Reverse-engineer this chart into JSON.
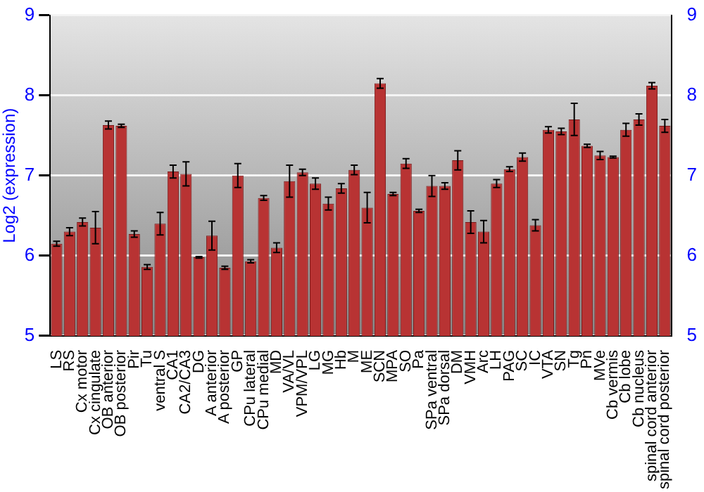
{
  "chart_data": {
    "type": "bar",
    "ylabel": "Log2 (expression)",
    "categories": [
      "LS",
      "RS",
      "Cx motor",
      "Cx cingulate",
      "OB anterior",
      "OB posterior",
      "Pir",
      "Tu",
      "ventral S",
      "CA1",
      "CA2/CA3",
      "DG",
      "A anterior",
      "A posterior",
      "GP",
      "CPu lateral",
      "CPu medial",
      "MD",
      "VA/VL",
      "VPM/VPL",
      "LG",
      "MG",
      "Hb",
      "M",
      "ME",
      "SCN",
      "MPA",
      "SO",
      "Pa",
      "SPa ventral",
      "SPa dorsal",
      "DM",
      "VMH",
      "Arc",
      "LH",
      "PAG",
      "SC",
      "IC",
      "VTA",
      "SN",
      "Tg",
      "Pn",
      "MVe",
      "Cb vermis",
      "Cb lobe",
      "Cb nucleus",
      "spinal cord anterior",
      "spinal cord posterior"
    ],
    "values": [
      6.15,
      6.3,
      6.42,
      6.35,
      7.63,
      7.62,
      6.27,
      5.86,
      6.4,
      7.05,
      7.02,
      5.98,
      6.25,
      5.85,
      7.0,
      5.93,
      6.72,
      6.1,
      6.93,
      7.04,
      6.9,
      6.65,
      6.84,
      7.07,
      6.6,
      8.15,
      6.77,
      7.15,
      6.56,
      6.87,
      6.87,
      7.19,
      6.42,
      6.3,
      6.9,
      7.08,
      7.23,
      6.38,
      7.57,
      7.55,
      7.7,
      7.37,
      7.25,
      7.23,
      7.57,
      7.7,
      8.12,
      7.62
    ],
    "errors": [
      0.03,
      0.05,
      0.05,
      0.2,
      0.05,
      0.02,
      0.04,
      0.03,
      0.14,
      0.08,
      0.15,
      0.01,
      0.18,
      0.02,
      0.15,
      0.02,
      0.03,
      0.06,
      0.2,
      0.04,
      0.07,
      0.08,
      0.06,
      0.06,
      0.19,
      0.06,
      0.02,
      0.06,
      0.02,
      0.13,
      0.04,
      0.12,
      0.14,
      0.14,
      0.05,
      0.03,
      0.05,
      0.07,
      0.04,
      0.04,
      0.2,
      0.02,
      0.05,
      0.01,
      0.08,
      0.07,
      0.04,
      0.08
    ],
    "color": "#b83333",
    "ylim": [
      5,
      9
    ],
    "yticks": [
      5,
      6,
      7,
      8,
      9
    ],
    "y2lim": [
      5,
      9
    ],
    "y2ticks": [
      5,
      6,
      7,
      8,
      9
    ],
    "grid": "y"
  }
}
